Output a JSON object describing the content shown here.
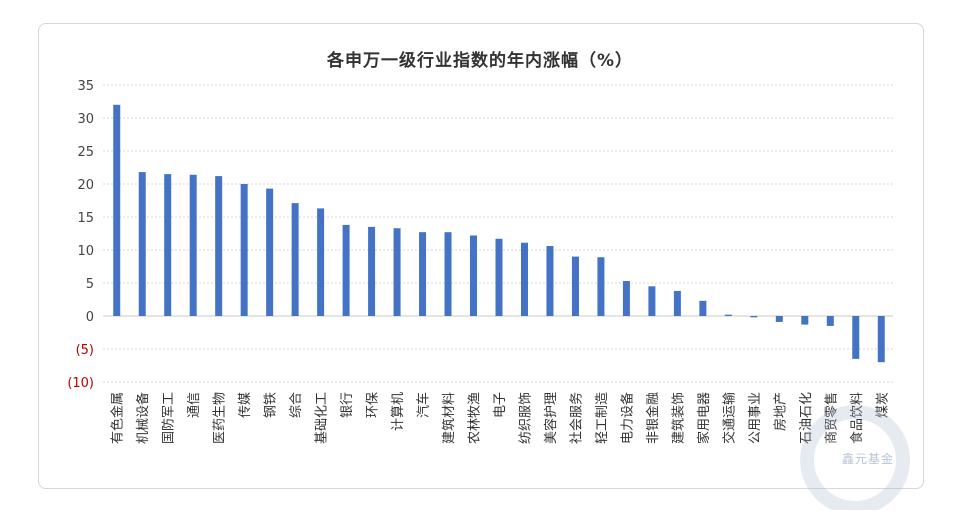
{
  "chart_data": {
    "type": "bar",
    "title": "各申万一级行业指数的年内涨幅（%）",
    "xlabel": "",
    "ylabel": "",
    "ylim": [
      -10,
      35
    ],
    "y_ticks": [
      35,
      30,
      25,
      20,
      15,
      10,
      5,
      0,
      -5,
      -10
    ],
    "y_tick_labels": [
      "35",
      "30",
      "25",
      "20",
      "15",
      "10",
      "5",
      "0",
      "(5)",
      "(10)"
    ],
    "grid": "horizontal dashed",
    "bar_color": "#4472c4",
    "negative_tick_color": "#c00000",
    "categories": [
      "有色金属",
      "机械设备",
      "国防军工",
      "通信",
      "医药生物",
      "传媒",
      "钢铁",
      "综合",
      "基础化工",
      "银行",
      "环保",
      "计算机",
      "汽车",
      "建筑材料",
      "农林牧渔",
      "电子",
      "纺织服饰",
      "美容护理",
      "社会服务",
      "轻工制造",
      "电力设备",
      "非银金融",
      "建筑装饰",
      "家用电器",
      "交通运输",
      "公用事业",
      "房地产",
      "石油石化",
      "商贸零售",
      "食品饮料",
      "煤炭"
    ],
    "values": [
      32.0,
      21.8,
      21.5,
      21.4,
      21.2,
      20.0,
      19.3,
      17.1,
      16.3,
      13.8,
      13.5,
      13.3,
      12.7,
      12.7,
      12.2,
      11.7,
      11.1,
      10.6,
      9.0,
      8.9,
      5.3,
      4.5,
      3.8,
      2.3,
      0.2,
      -0.2,
      -0.9,
      -1.3,
      -1.5,
      -6.5,
      -7.0
    ]
  },
  "watermark": {
    "text": "鑫元基金"
  }
}
